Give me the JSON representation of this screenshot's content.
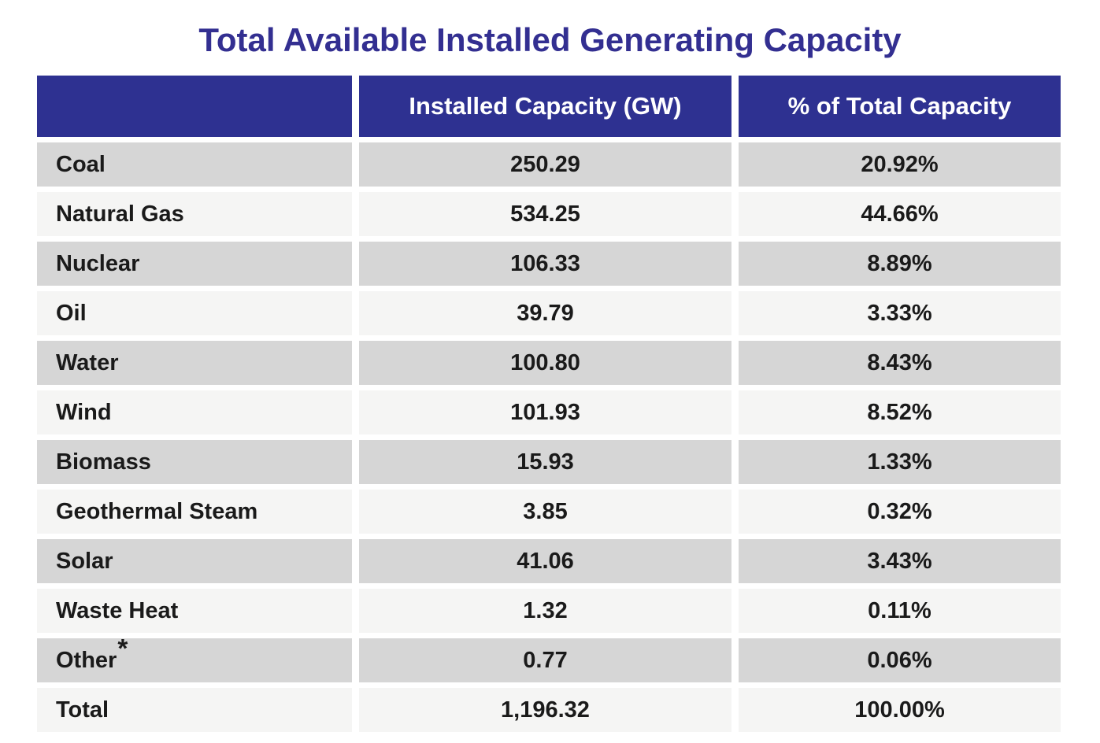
{
  "title": "Total Available Installed Generating Capacity",
  "colors": {
    "title-color": "#332F91",
    "header-bg": "#2E3191",
    "row-dark": "#D6D6D6",
    "row-light": "#F5F5F4",
    "header-text": "#FFFFFF",
    "body-text": "#1A1A1A"
  },
  "chart_data": {
    "type": "table",
    "title": "Total Available Installed Generating Capacity",
    "columns": [
      "",
      "Installed Capacity (GW)",
      "% of Total Capacity"
    ],
    "rows": [
      {
        "label": "Coal",
        "capacity": "250.29",
        "percent": "20.92%"
      },
      {
        "label": "Natural Gas",
        "capacity": "534.25",
        "percent": "44.66%"
      },
      {
        "label": "Nuclear",
        "capacity": "106.33",
        "percent": "8.89%"
      },
      {
        "label": "Oil",
        "capacity": "39.79",
        "percent": "3.33%"
      },
      {
        "label": "Water",
        "capacity": "100.80",
        "percent": "8.43%"
      },
      {
        "label": "Wind",
        "capacity": "101.93",
        "percent": "8.52%"
      },
      {
        "label": "Biomass",
        "capacity": "15.93",
        "percent": "1.33%"
      },
      {
        "label": "Geothermal Steam",
        "capacity": "3.85",
        "percent": "0.32%"
      },
      {
        "label": "Solar",
        "capacity": "41.06",
        "percent": "3.43%"
      },
      {
        "label": "Waste Heat",
        "capacity": "1.32",
        "percent": "0.11%"
      },
      {
        "label": "Other",
        "sup": "*",
        "capacity": "0.77",
        "percent": "0.06%"
      },
      {
        "label": "Total",
        "capacity": "1,196.32",
        "percent": "100.00%"
      }
    ]
  }
}
